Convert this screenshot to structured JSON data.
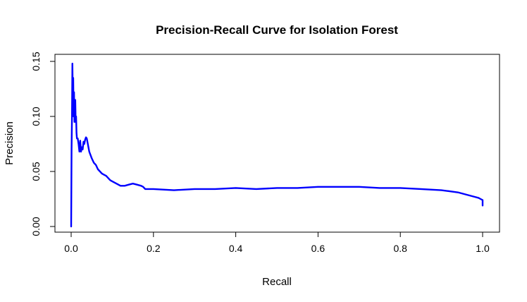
{
  "chart_data": {
    "type": "line",
    "title": "Precision-Recall Curve for Isolation Forest",
    "xlabel": "Recall",
    "ylabel": "Precision",
    "xlim": [
      0.0,
      1.0
    ],
    "ylim": [
      0.0,
      0.15
    ],
    "x_ticks": [
      0.0,
      0.2,
      0.4,
      0.6,
      0.8,
      1.0
    ],
    "x_tick_labels": [
      "0.0",
      "0.2",
      "0.4",
      "0.6",
      "0.8",
      "1.0"
    ],
    "y_ticks": [
      0.0,
      0.05,
      0.1,
      0.15
    ],
    "y_tick_labels": [
      "0.00",
      "0.05",
      "0.10",
      "0.15"
    ],
    "grid": false,
    "legend": "none",
    "series": [
      {
        "color": "#0000ff",
        "x": [
          0.0,
          0.001,
          0.002,
          0.003,
          0.004,
          0.005,
          0.006,
          0.007,
          0.008,
          0.009,
          0.01,
          0.011,
          0.012,
          0.013,
          0.014,
          0.016,
          0.018,
          0.02,
          0.022,
          0.024,
          0.026,
          0.028,
          0.03,
          0.032,
          0.034,
          0.036,
          0.038,
          0.04,
          0.042,
          0.044,
          0.046,
          0.048,
          0.05,
          0.055,
          0.06,
          0.065,
          0.07,
          0.075,
          0.08,
          0.085,
          0.09,
          0.095,
          0.1,
          0.11,
          0.12,
          0.13,
          0.14,
          0.15,
          0.16,
          0.17,
          0.175,
          0.18,
          0.2,
          0.25,
          0.3,
          0.35,
          0.4,
          0.45,
          0.5,
          0.55,
          0.6,
          0.65,
          0.7,
          0.75,
          0.8,
          0.85,
          0.9,
          0.92,
          0.94,
          0.96,
          0.98,
          0.99,
          0.995,
          1.0,
          1.0
        ],
        "y": [
          0.0,
          0.07,
          0.1,
          0.148,
          0.12,
          0.135,
          0.1,
          0.122,
          0.095,
          0.11,
          0.115,
          0.095,
          0.1,
          0.085,
          0.08,
          0.08,
          0.075,
          0.068,
          0.078,
          0.068,
          0.072,
          0.07,
          0.077,
          0.075,
          0.079,
          0.081,
          0.08,
          0.076,
          0.072,
          0.068,
          0.066,
          0.064,
          0.062,
          0.058,
          0.056,
          0.052,
          0.05,
          0.048,
          0.047,
          0.046,
          0.044,
          0.042,
          0.041,
          0.039,
          0.037,
          0.037,
          0.038,
          0.039,
          0.038,
          0.037,
          0.036,
          0.034,
          0.034,
          0.033,
          0.034,
          0.034,
          0.035,
          0.034,
          0.035,
          0.035,
          0.036,
          0.036,
          0.036,
          0.035,
          0.035,
          0.034,
          0.033,
          0.032,
          0.031,
          0.029,
          0.027,
          0.026,
          0.025,
          0.024,
          0.019
        ]
      }
    ]
  }
}
